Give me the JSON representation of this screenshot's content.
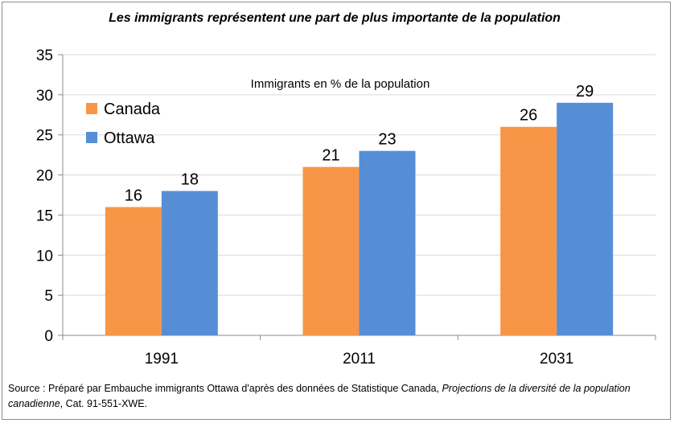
{
  "chart_data": {
    "type": "bar",
    "title": "Les immigrants représentent une part de plus importante de la population",
    "subtitle": "Immigrants en % de la population",
    "categories": [
      "1991",
      "2011",
      "2031"
    ],
    "series": [
      {
        "name": "Canada",
        "color": "#f79646",
        "values": [
          16,
          21,
          26
        ]
      },
      {
        "name": "Ottawa",
        "color": "#558ed5",
        "values": [
          18,
          23,
          29
        ]
      }
    ],
    "ylim": [
      0,
      35
    ],
    "yticks": [
      "0",
      "5",
      "10",
      "15",
      "20",
      "25",
      "30",
      "35"
    ],
    "grid": true,
    "legend_position": "top-left"
  },
  "source": {
    "prefix": "Source : Préparé  par Embauche immigrants Ottawa d'après des données de Statistique Canada, ",
    "italic": "Projections de la diversité de la population canadienne",
    "suffix": ", Cat. 91-551-XWE."
  }
}
